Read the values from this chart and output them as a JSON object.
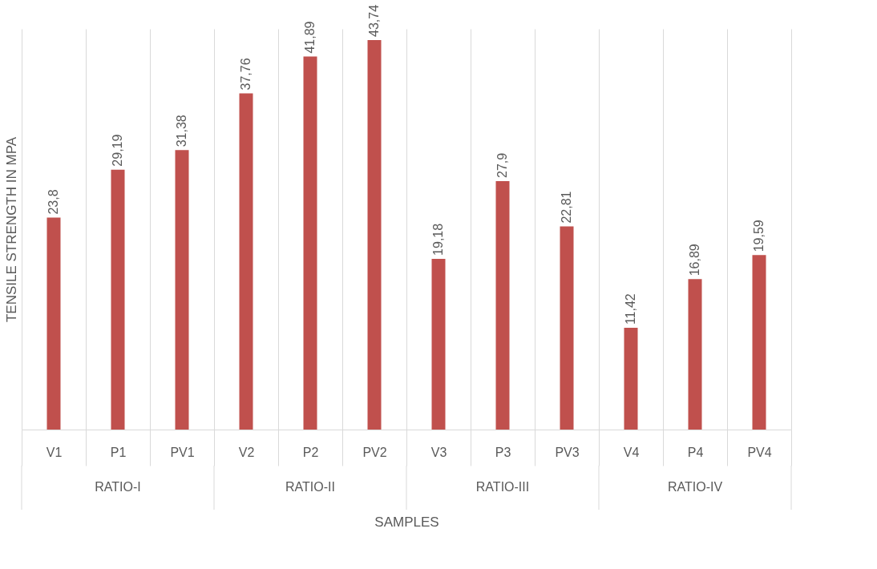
{
  "chart_data": {
    "type": "bar",
    "xlabel": "SAMPLES",
    "ylabel": "TENSILE STRENGTH IN MPA",
    "categories": [
      "V1",
      "P1",
      "PV1",
      "V2",
      "P2",
      "PV2",
      "V3",
      "P3",
      "PV3",
      "V4",
      "P4",
      "PV4"
    ],
    "values": [
      23.8,
      29.19,
      31.38,
      37.76,
      41.89,
      43.74,
      19.18,
      27.9,
      22.81,
      11.42,
      16.89,
      19.59
    ],
    "value_labels": [
      "23,8",
      "29,19",
      "31,38",
      "37,76",
      "41,89",
      "43,74",
      "19,18",
      "27,9",
      "22,81",
      "11,42",
      "16,89",
      "19,59"
    ],
    "color": "#c0504d",
    "grid": "x",
    "legend": false,
    "annotations": [
      "RATIO-I",
      "RATIO-II",
      "RATIO-III",
      "RATIO-IV"
    ]
  }
}
